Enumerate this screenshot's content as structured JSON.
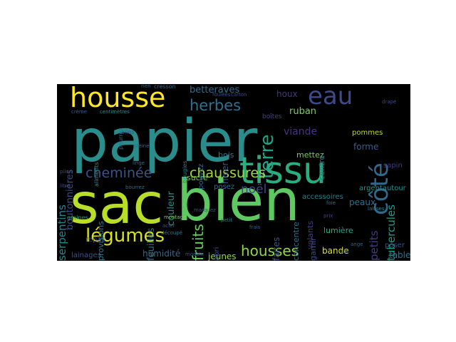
{
  "words": [
    {
      "text": "papier",
      "color": "#2a8d8c",
      "rot": 0
    },
    {
      "text": "sac",
      "color": "#b8de29",
      "rot": 0
    },
    {
      "text": "bien",
      "color": "#5fc961",
      "rot": 0
    },
    {
      "text": "tissu",
      "color": "#29ae80",
      "rot": 0
    },
    {
      "text": "housse",
      "color": "#fde725",
      "rot": 0
    },
    {
      "text": "eau",
      "color": "#3f4a8a",
      "rot": 0
    },
    {
      "text": "côté",
      "color": "#31688e",
      "rot": 90
    },
    {
      "text": "terre",
      "color": "#20a386",
      "rot": 90
    },
    {
      "text": "légumes",
      "color": "#d8e219",
      "rot": 0
    },
    {
      "text": "cheminée",
      "color": "#3b528b",
      "rot": 0
    },
    {
      "text": "chaussures",
      "color": "#a0da39",
      "rot": 0
    },
    {
      "text": "herbes",
      "color": "#2c728e",
      "rot": 0
    },
    {
      "text": "housses",
      "color": "#8fd744",
      "rot": 0
    },
    {
      "text": "fruits",
      "color": "#6ccd5a",
      "rot": 90
    },
    {
      "text": "noël",
      "color": "#3e4a89",
      "rot": 0
    },
    {
      "text": "viande",
      "color": "#46337e",
      "rot": 0
    },
    {
      "text": "tubercules",
      "color": "#1f998a",
      "rot": 90
    },
    {
      "text": "serpentins",
      "color": "#25858e",
      "rot": 90
    },
    {
      "text": "betteraves",
      "color": "#2e6f8e",
      "rot": 0
    },
    {
      "text": "ruban",
      "color": "#7ad151",
      "rot": 0
    },
    {
      "text": "petits",
      "color": "#433e85",
      "rot": 90
    },
    {
      "text": "boutonnières",
      "color": "#3e4c8a",
      "rot": 90
    },
    {
      "text": "feuilles",
      "color": "#2d708e",
      "rot": 90
    },
    {
      "text": "couleur",
      "color": "#228c8d",
      "rot": 90
    },
    {
      "text": "humidité",
      "color": "#31688e",
      "rot": 0
    },
    {
      "text": "jeunes",
      "color": "#95d840",
      "rot": 0
    },
    {
      "text": "faites",
      "color": "#3a548c",
      "rot": 90
    },
    {
      "text": "hiver",
      "color": "#38598c",
      "rot": 90
    },
    {
      "text": "houx",
      "color": "#46337e",
      "rot": 0
    },
    {
      "text": "forme",
      "color": "#365c8d",
      "rot": 0
    },
    {
      "text": "peaux",
      "color": "#2e6e8e",
      "rot": 0
    },
    {
      "text": "bois",
      "color": "#2a778e",
      "rot": 0
    },
    {
      "text": "sucre",
      "color": "#6ece58",
      "rot": 0
    },
    {
      "text": "bande",
      "color": "#dde318",
      "rot": 0
    },
    {
      "text": "table",
      "color": "#2c728e",
      "rot": 0
    },
    {
      "text": "lainages",
      "color": "#3b528b",
      "rot": 0
    },
    {
      "text": "repas",
      "color": "#3f4889",
      "rot": 0
    },
    {
      "text": "provisions",
      "color": "#277f8e",
      "rot": 90
    },
    {
      "text": "concentre",
      "color": "#2c728e",
      "rot": 90
    },
    {
      "text": "lumière",
      "color": "#22a785",
      "rot": 0
    },
    {
      "text": "mettez",
      "color": "#73d056",
      "rot": 0
    },
    {
      "text": "pommes",
      "color": "#b5de2b",
      "rot": 0
    },
    {
      "text": "sapin",
      "color": "#443a83",
      "rot": 0
    },
    {
      "text": "poser",
      "color": "#3d4e8a",
      "rot": 0
    },
    {
      "text": "volants",
      "color": "#453882",
      "rot": 90
    },
    {
      "text": "posez",
      "color": "#2e6f8e",
      "rot": 0
    },
    {
      "text": "pouvez",
      "color": "#31688e",
      "rot": 90
    },
    {
      "text": "accessoires",
      "color": "#277e8e",
      "rot": 0
    },
    {
      "text": "argentautour",
      "color": "#21918c",
      "rot": 0
    },
    {
      "text": "centre",
      "color": "#2b758e",
      "rot": 90
    },
    {
      "text": "garnir",
      "color": "#3e4c8a",
      "rot": 90
    },
    {
      "text": "abri",
      "color": "#3b528b",
      "rot": 90
    },
    {
      "text": "boîtes",
      "color": "#414487",
      "rot": 0
    },
    {
      "text": "pourrez",
      "color": "#2f6c8e",
      "rot": 90
    },
    {
      "text": "ailes",
      "color": "#3e4989",
      "rot": 0
    },
    {
      "text": "aliments",
      "color": "#1f978b",
      "rot": 90
    },
    {
      "text": "bougies",
      "color": "#27808e",
      "rot": 90
    },
    {
      "text": "graines",
      "color": "#1f9e89",
      "rot": 0
    },
    {
      "text": "cresson",
      "color": "#306a8e",
      "rot": 0
    },
    {
      "text": "rien",
      "color": "#33638d",
      "rot": 0
    },
    {
      "text": "foulées",
      "color": "#3c4f8a",
      "rot": 0
    },
    {
      "text": "carton",
      "color": "#404688",
      "rot": 0
    },
    {
      "text": "crème",
      "color": "#355f8d",
      "rot": 0
    },
    {
      "text": "centimètres",
      "color": "#23898e",
      "rot": 0
    },
    {
      "text": "linge",
      "color": "#2d708e",
      "rot": 0
    },
    {
      "text": "pleine",
      "color": "#31688e",
      "rot": 0
    },
    {
      "text": "modèle",
      "color": "#3b528b",
      "rot": 0
    },
    {
      "text": "montage",
      "color": "#73d056",
      "rot": 0
    },
    {
      "text": "marquez",
      "color": "#39568c",
      "rot": 0
    },
    {
      "text": "petit",
      "color": "#2a788e",
      "rot": 0
    },
    {
      "text": "prix",
      "color": "#414487",
      "rot": 0
    },
    {
      "text": "frais",
      "color": "#34618d",
      "rot": 0
    },
    {
      "text": "ange",
      "color": "#31688e",
      "rot": 0
    },
    {
      "text": "sac",
      "color": "#355f8d",
      "rot": 0
    },
    {
      "text": "acier",
      "color": "#39568c",
      "rot": 0
    },
    {
      "text": "découpé",
      "color": "#2c728e",
      "rot": 0
    },
    {
      "text": "litre",
      "color": "#404588",
      "rot": 0
    },
    {
      "text": "pilon",
      "color": "#3e4a89",
      "rot": 0
    },
    {
      "text": "foie",
      "color": "#2e6e8e",
      "rot": 0
    },
    {
      "text": "laisses",
      "color": "#25848e",
      "rot": 0
    },
    {
      "text": "drapé",
      "color": "#3f4889",
      "rot": 0
    },
    {
      "text": "bourrez",
      "color": "#2d718e",
      "rot": 0
    }
  ]
}
